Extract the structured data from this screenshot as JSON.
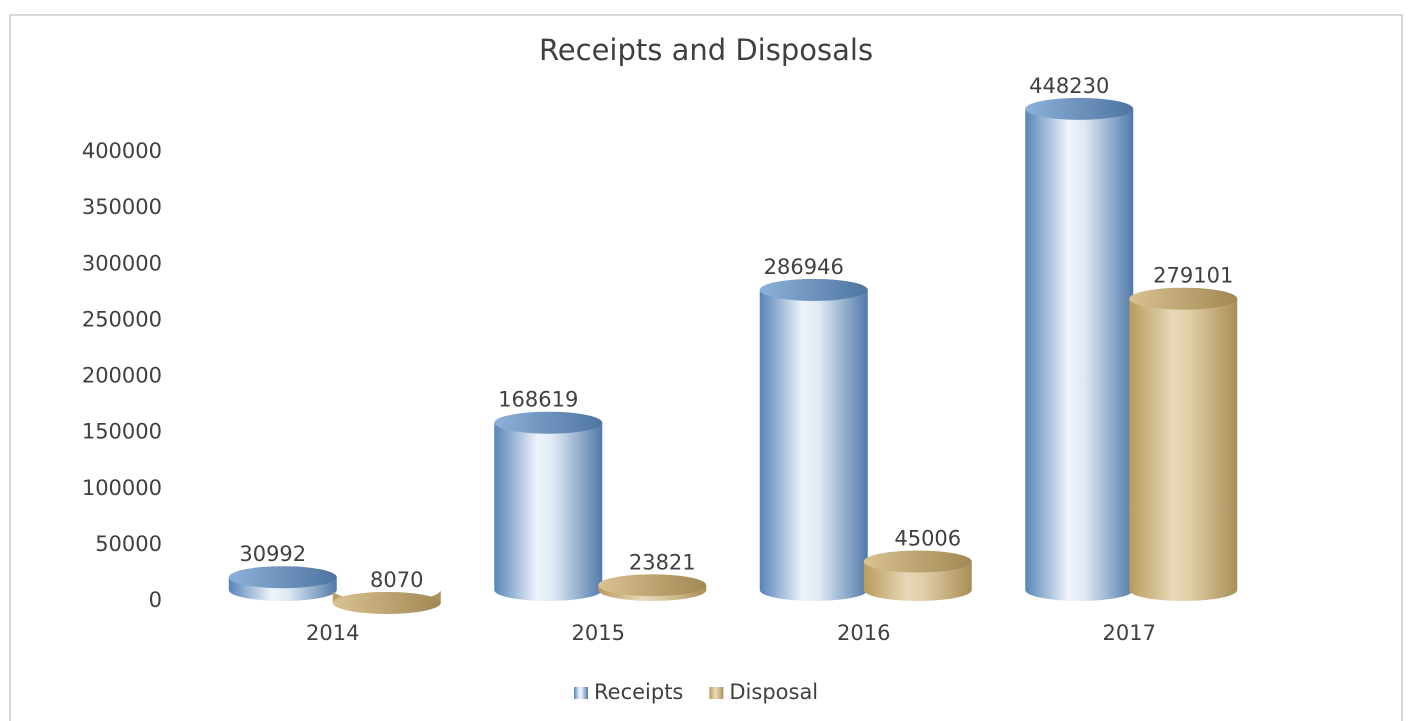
{
  "chart_data": {
    "type": "bar",
    "title": "Receipts and Disposals",
    "categories": [
      "2014",
      "2015",
      "2016",
      "2017"
    ],
    "series": [
      {
        "name": "Receipts",
        "color": "#5b8fc9",
        "values": [
          30992,
          168619,
          286946,
          448230
        ]
      },
      {
        "name": "Disposal",
        "color": "#c9a862",
        "values": [
          8070,
          23821,
          45006,
          279101
        ]
      }
    ],
    "ylim": [
      0,
      450000
    ],
    "yticks": [
      0,
      50000,
      100000,
      150000,
      200000,
      250000,
      300000,
      350000,
      400000
    ],
    "legend": "bottom"
  }
}
